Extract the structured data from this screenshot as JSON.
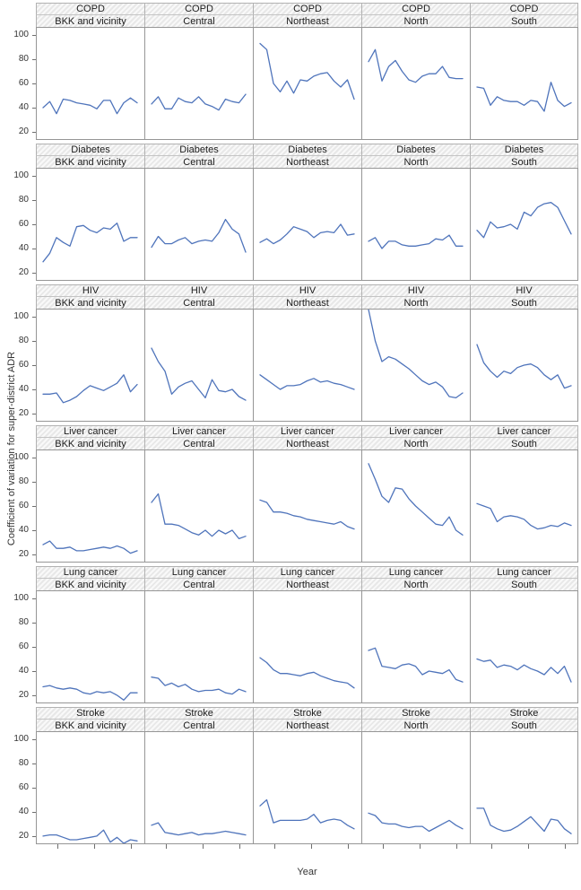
{
  "figure": {
    "y_axis_title": "Coefficient of variation for super-district ADR",
    "x_axis_title": "Year",
    "y_ticks": [
      100,
      80,
      60,
      40,
      20
    ],
    "colors": {
      "line": "#4f74bb",
      "strip_background": "#f1f1f1",
      "panel_border": "#969696",
      "strip_border": "#b2b2b2",
      "tick": "#6f6f6f"
    }
  },
  "chart_data": {
    "type": "line",
    "title": "",
    "layout": "lattice of 6 disease rows x 5 region columns, one line series per panel",
    "xlabel": "Year",
    "ylabel": "Coefficient of variation for super-district ADR",
    "ylim": [
      14,
      106
    ],
    "y_ticks": [
      20,
      40,
      60,
      80,
      100
    ],
    "x_tick_labels": "none (unlabeled year ticks, 3 per panel)",
    "grid": "off",
    "legend": "none",
    "n_points": 15,
    "rows": [
      "COPD",
      "Diabetes",
      "HIV",
      "Liver cancer",
      "Lung cancer",
      "Stroke"
    ],
    "columns": [
      "BKK and vicinity",
      "Central",
      "Northeast",
      "North",
      "South"
    ],
    "series": [
      {
        "disease": "COPD",
        "region": "BKK and vicinity",
        "values": [
          40,
          45,
          35,
          47,
          46,
          44,
          43,
          42,
          39,
          46,
          46,
          35,
          44,
          48,
          44
        ]
      },
      {
        "disease": "COPD",
        "region": "Central",
        "values": [
          43,
          49,
          39,
          39,
          48,
          45,
          44,
          49,
          43,
          41,
          38,
          47,
          45,
          44,
          51
        ]
      },
      {
        "disease": "COPD",
        "region": "Northeast",
        "values": [
          93,
          88,
          60,
          53,
          62,
          52,
          63,
          62,
          66,
          68,
          69,
          62,
          57,
          63,
          47
        ]
      },
      {
        "disease": "COPD",
        "region": "North",
        "values": [
          78,
          88,
          62,
          74,
          79,
          70,
          63,
          61,
          66,
          68,
          68,
          74,
          65,
          64,
          64
        ]
      },
      {
        "disease": "COPD",
        "region": "South",
        "values": [
          57,
          56,
          42,
          49,
          46,
          45,
          45,
          42,
          46,
          45,
          37,
          61,
          46,
          41,
          44
        ]
      },
      {
        "disease": "Diabetes",
        "region": "BKK and vicinity",
        "values": [
          29,
          36,
          49,
          45,
          42,
          58,
          59,
          55,
          53,
          57,
          56,
          61,
          46,
          49,
          49
        ]
      },
      {
        "disease": "Diabetes",
        "region": "Central",
        "values": [
          41,
          50,
          44,
          44,
          47,
          49,
          44,
          46,
          47,
          46,
          53,
          64,
          56,
          52,
          37
        ]
      },
      {
        "disease": "Diabetes",
        "region": "Northeast",
        "values": [
          45,
          48,
          44,
          47,
          52,
          58,
          56,
          54,
          49,
          53,
          54,
          53,
          60,
          51,
          52
        ]
      },
      {
        "disease": "Diabetes",
        "region": "North",
        "values": [
          46,
          49,
          40,
          46,
          46,
          43,
          42,
          42,
          43,
          44,
          48,
          47,
          51,
          42,
          42
        ]
      },
      {
        "disease": "Diabetes",
        "region": "South",
        "values": [
          55,
          49,
          62,
          57,
          58,
          60,
          56,
          70,
          67,
          74,
          77,
          78,
          74,
          63,
          52
        ]
      },
      {
        "disease": "HIV",
        "region": "BKK and vicinity",
        "values": [
          36,
          36,
          37,
          29,
          31,
          34,
          39,
          43,
          41,
          39,
          42,
          45,
          52,
          38,
          44
        ]
      },
      {
        "disease": "HIV",
        "region": "Central",
        "values": [
          74,
          63,
          55,
          36,
          42,
          45,
          47,
          40,
          33,
          48,
          39,
          38,
          40,
          34,
          31
        ]
      },
      {
        "disease": "HIV",
        "region": "Northeast",
        "values": [
          52,
          48,
          44,
          40,
          43,
          43,
          44,
          47,
          49,
          46,
          47,
          45,
          44,
          42,
          40
        ]
      },
      {
        "disease": "HIV",
        "region": "North",
        "values": [
          106,
          80,
          63,
          67,
          65,
          61,
          57,
          52,
          47,
          44,
          46,
          42,
          34,
          33,
          37
        ]
      },
      {
        "disease": "HIV",
        "region": "South",
        "values": [
          77,
          62,
          55,
          50,
          55,
          53,
          58,
          60,
          61,
          58,
          52,
          48,
          52,
          41,
          43
        ]
      },
      {
        "disease": "Liver cancer",
        "region": "BKK and vicinity",
        "values": [
          28,
          31,
          25,
          25,
          26,
          23,
          23,
          24,
          25,
          26,
          25,
          27,
          25,
          21,
          23
        ]
      },
      {
        "disease": "Liver cancer",
        "region": "Central",
        "values": [
          63,
          70,
          45,
          45,
          44,
          41,
          38,
          36,
          40,
          35,
          40,
          37,
          40,
          33,
          35
        ]
      },
      {
        "disease": "Liver cancer",
        "region": "Northeast",
        "values": [
          65,
          63,
          55,
          55,
          54,
          52,
          51,
          49,
          48,
          47,
          46,
          45,
          47,
          43,
          41
        ]
      },
      {
        "disease": "Liver cancer",
        "region": "North",
        "values": [
          95,
          82,
          68,
          63,
          75,
          74,
          66,
          60,
          55,
          50,
          45,
          44,
          51,
          40,
          36
        ]
      },
      {
        "disease": "Liver cancer",
        "region": "South",
        "values": [
          62,
          60,
          58,
          47,
          51,
          52,
          51,
          49,
          44,
          41,
          42,
          44,
          43,
          46,
          44
        ]
      },
      {
        "disease": "Lung cancer",
        "region": "BKK and vicinity",
        "values": [
          27,
          28,
          26,
          25,
          26,
          25,
          22,
          21,
          23,
          22,
          23,
          20,
          16,
          22,
          22
        ]
      },
      {
        "disease": "Lung cancer",
        "region": "Central",
        "values": [
          35,
          34,
          28,
          30,
          27,
          29,
          25,
          23,
          24,
          24,
          25,
          22,
          21,
          25,
          23
        ]
      },
      {
        "disease": "Lung cancer",
        "region": "Northeast",
        "values": [
          51,
          47,
          41,
          38,
          38,
          37,
          36,
          38,
          39,
          36,
          34,
          32,
          31,
          30,
          26
        ]
      },
      {
        "disease": "Lung cancer",
        "region": "North",
        "values": [
          57,
          59,
          44,
          43,
          42,
          45,
          46,
          44,
          37,
          40,
          39,
          38,
          41,
          33,
          31
        ]
      },
      {
        "disease": "Lung cancer",
        "region": "South",
        "values": [
          50,
          48,
          49,
          43,
          45,
          44,
          41,
          45,
          42,
          40,
          37,
          43,
          38,
          44,
          31
        ]
      },
      {
        "disease": "Stroke",
        "region": "BKK and vicinity",
        "values": [
          20,
          21,
          21,
          19,
          17,
          17,
          18,
          19,
          20,
          25,
          15,
          19,
          14,
          17,
          16
        ]
      },
      {
        "disease": "Stroke",
        "region": "Central",
        "values": [
          29,
          31,
          23,
          22,
          21,
          22,
          23,
          21,
          22,
          22,
          23,
          24,
          23,
          22,
          21
        ]
      },
      {
        "disease": "Stroke",
        "region": "Northeast",
        "values": [
          45,
          50,
          31,
          33,
          33,
          33,
          33,
          34,
          38,
          31,
          33,
          34,
          33,
          29,
          26
        ]
      },
      {
        "disease": "Stroke",
        "region": "North",
        "values": [
          39,
          37,
          31,
          30,
          30,
          28,
          27,
          28,
          28,
          24,
          27,
          30,
          33,
          29,
          26
        ]
      },
      {
        "disease": "Stroke",
        "region": "South",
        "values": [
          43,
          43,
          29,
          26,
          24,
          25,
          28,
          32,
          36,
          30,
          24,
          34,
          33,
          26,
          22
        ]
      }
    ]
  }
}
